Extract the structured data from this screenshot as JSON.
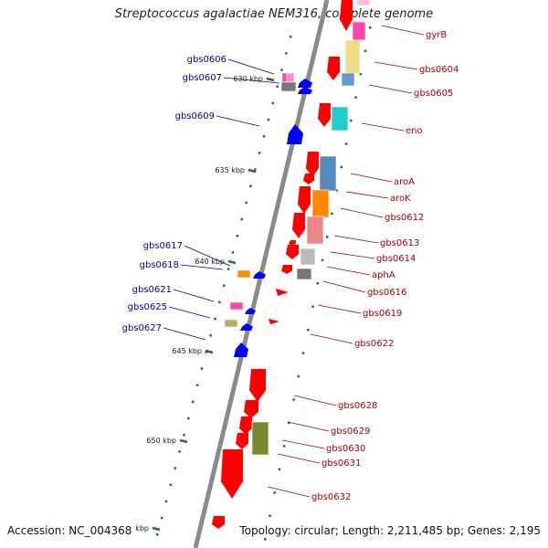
{
  "title": "Streptococcus agalactiae NEM316, complete genome",
  "footer": {
    "accession": "Accession: NC_004368",
    "summary": "Topology: circular; Length: 2,211,485 bp; Genes: 2,195"
  },
  "colors": {
    "backbone": "#8a8a8a",
    "left_label": "#0000aa",
    "right_label": "#aa0000",
    "tick": "#1a7a1a"
  },
  "ticks": [
    {
      "kbp": 630,
      "label": "630 kbp"
    },
    {
      "kbp": 635,
      "label": "635 kbp"
    },
    {
      "kbp": 640,
      "label": "640 kbp"
    },
    {
      "kbp": 645,
      "label": "645 kbp"
    },
    {
      "kbp": 650,
      "label": "650 kbp"
    },
    {
      "kbp": 655,
      "label": "kbp"
    }
  ],
  "labels_left": [
    "gbs0606",
    "gbs0607",
    "gbs0609",
    "gbs0617",
    "gbs0618",
    "gbs0621",
    "gbs0625",
    "gbs0627"
  ],
  "labels_right": [
    "gyrB",
    "gbs0604",
    "gbs0605",
    "eno",
    "aroA",
    "aroK",
    "gbs0612",
    "gbs0613",
    "gbs0614",
    "aphA",
    "gbs0616",
    "gbs0619",
    "gbs0622",
    "gbs0628",
    "gbs0629",
    "gbs0630",
    "gbs0631",
    "gbs0632"
  ]
}
